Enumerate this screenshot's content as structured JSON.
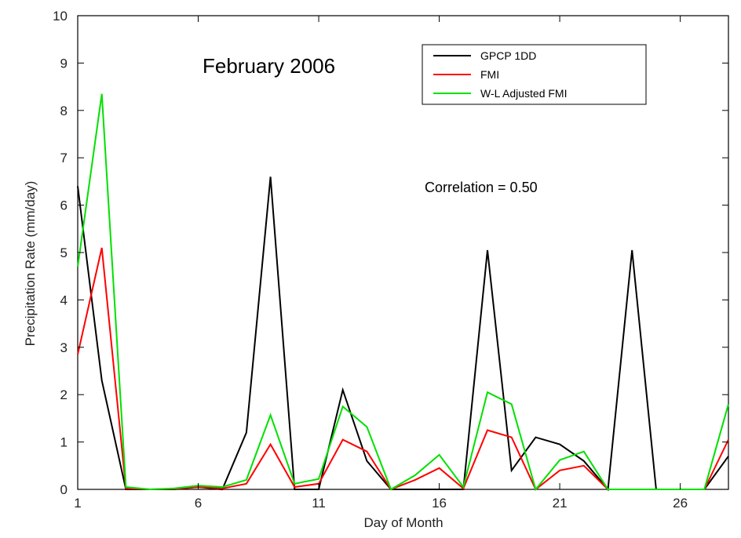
{
  "chart_data": {
    "type": "line",
    "title": "February 2006",
    "xlabel": "Day of Month",
    "ylabel": "Precipitation Rate (mm/day)",
    "annotation": "Correlation = 0.50",
    "xlim": [
      1,
      28
    ],
    "ylim": [
      0,
      10
    ],
    "xticks": [
      1,
      6,
      11,
      16,
      21,
      26
    ],
    "yticks": [
      0,
      1,
      2,
      3,
      4,
      5,
      6,
      7,
      8,
      9,
      10
    ],
    "grid": false,
    "legend_position": "top-right",
    "x": [
      1,
      2,
      3,
      4,
      5,
      6,
      7,
      8,
      9,
      10,
      11,
      12,
      13,
      14,
      15,
      16,
      17,
      18,
      19,
      20,
      21,
      22,
      23,
      24,
      25,
      26,
      27,
      28
    ],
    "series": [
      {
        "name": "GPCP 1DD",
        "color": "#000000",
        "values": [
          6.4,
          2.3,
          0.0,
          0.0,
          0.0,
          0.05,
          0.0,
          1.2,
          6.6,
          0.0,
          0.0,
          2.1,
          0.6,
          0.0,
          0.0,
          0.0,
          0.0,
          5.05,
          0.4,
          1.1,
          0.95,
          0.6,
          0.0,
          5.05,
          0.0,
          0.0,
          0.0,
          0.7
        ]
      },
      {
        "name": "FMI",
        "color": "#ff0000",
        "values": [
          2.85,
          5.1,
          0.02,
          0.0,
          0.01,
          0.05,
          0.02,
          0.12,
          0.95,
          0.05,
          0.12,
          1.05,
          0.8,
          0.0,
          0.2,
          0.45,
          0.02,
          1.25,
          1.1,
          0.0,
          0.4,
          0.5,
          0.0,
          0.0,
          0.0,
          0.0,
          0.0,
          1.05
        ]
      },
      {
        "name": "W-L Adjusted FMI",
        "color": "#00e000",
        "values": [
          4.7,
          8.35,
          0.05,
          0.0,
          0.02,
          0.08,
          0.05,
          0.2,
          1.57,
          0.12,
          0.22,
          1.75,
          1.32,
          0.0,
          0.3,
          0.73,
          0.05,
          2.05,
          1.8,
          0.0,
          0.62,
          0.8,
          0.0,
          0.0,
          0.0,
          0.0,
          0.0,
          1.8
        ]
      }
    ]
  }
}
